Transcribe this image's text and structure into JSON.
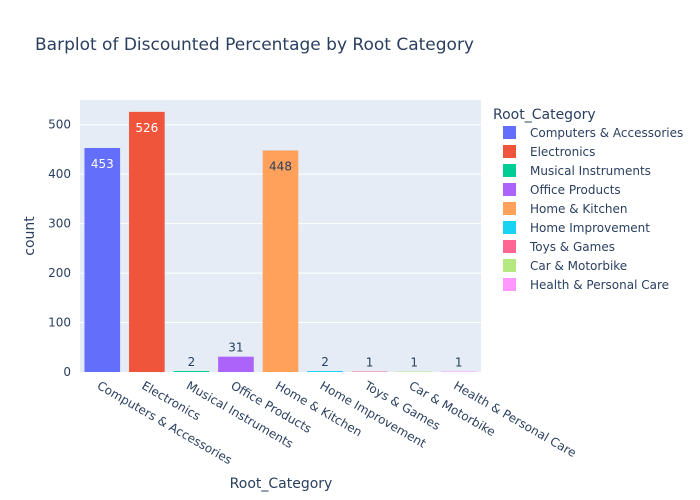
{
  "chart_data": {
    "type": "bar",
    "title": "Barplot of Discounted Percentage by Root Category",
    "xlabel": "Root_Category",
    "ylabel": "count",
    "ylim": [
      0,
      550
    ],
    "yticks": [
      0,
      100,
      200,
      300,
      400,
      500
    ],
    "categories": [
      "Computers & Accessories",
      "Electronics",
      "Musical Instruments",
      "Office Products",
      "Home & Kitchen",
      "Home Improvement",
      "Toys & Games",
      "Car & Motorbike",
      "Health & Personal Care"
    ],
    "values": [
      453,
      526,
      2,
      31,
      448,
      2,
      1,
      1,
      1
    ],
    "colors": [
      "#636efa",
      "#EF553B",
      "#00cc96",
      "#ab63fa",
      "#FFA15A",
      "#19d3f3",
      "#FF6692",
      "#B6E880",
      "#FF97FF"
    ],
    "legend": {
      "title": "Root_Category",
      "placement": "right"
    },
    "grid": true
  }
}
